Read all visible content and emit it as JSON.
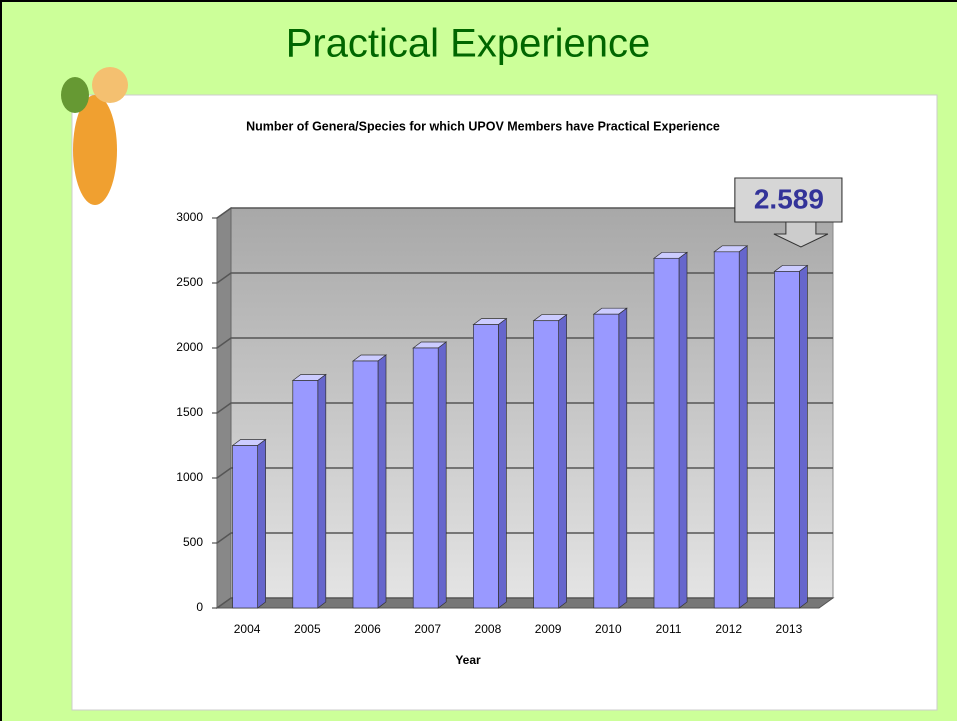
{
  "header": {
    "title": "Practical Experience"
  },
  "chart_data": {
    "type": "bar3d",
    "title": "Number of Genera/Species for which UPOV Members have Practical Experience",
    "x_label": "Year",
    "categories": [
      "2004",
      "2005",
      "2006",
      "2007",
      "2008",
      "2009",
      "2010",
      "2011",
      "2012",
      "2013"
    ],
    "values": [
      1250,
      1750,
      1900,
      2000,
      2180,
      2210,
      2260,
      2690,
      2740,
      2589
    ],
    "value_labels": [
      null,
      null,
      null,
      null,
      null,
      null,
      null,
      null,
      null,
      "2.589"
    ],
    "color": "#9999ff",
    "ylim": [
      0,
      3000
    ],
    "yticks": [
      0,
      500,
      1000,
      1500,
      2000,
      2500,
      3000
    ],
    "grid": true
  }
}
